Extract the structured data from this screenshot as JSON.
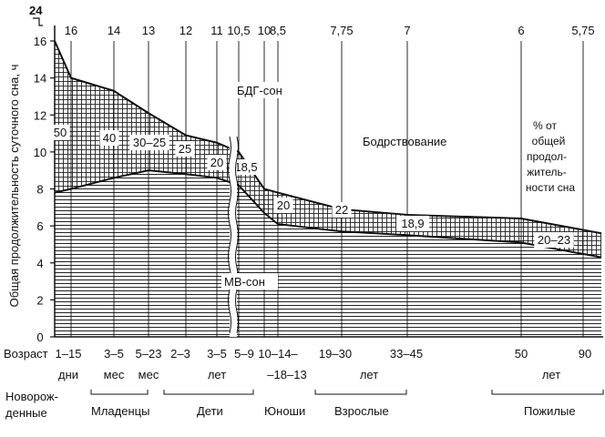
{
  "chart_data": {
    "type": "area",
    "title": "",
    "ylabel": "Общая продолжительность суточного сна, ч",
    "ylim": [
      0,
      16
    ],
    "yticks": [
      0,
      2,
      4,
      6,
      8,
      10,
      12,
      14,
      16
    ],
    "y_top_label": "24",
    "top_values": [
      "16",
      "14",
      "13",
      "12",
      "11",
      "10,5",
      "10",
      "8,5",
      "7,75",
      "7",
      "6",
      "5,75"
    ],
    "age_row_label": "Возраст",
    "age_groups": [
      {
        "range": "1–15",
        "unit": "дни"
      },
      {
        "range": "3–5",
        "unit": "мес"
      },
      {
        "range": "5–23",
        "unit": "мес"
      },
      {
        "range": "2–3",
        "unit": ""
      },
      {
        "range": "3–5",
        "unit": "лет"
      },
      {
        "range": "5–9",
        "unit": ""
      },
      {
        "range": "10–14–",
        "unit": "–18–13"
      },
      {
        "range": "19–30",
        "unit": "лет"
      },
      {
        "range": "33–45",
        "unit": ""
      },
      {
        "range": "50",
        "unit": "лет"
      },
      {
        "range": "90",
        "unit": ""
      }
    ],
    "categories": [
      "Новорожденные",
      "Младенцы",
      "Дети",
      "Юноши",
      "Взрослые",
      "Пожилые"
    ],
    "category_text": {
      "newborn_line1": "Новорож-",
      "newborn_line2": "денные",
      "infants": "Младенцы",
      "children": "Дети",
      "youth": "Юноши",
      "adults": "Взрослые",
      "elderly": "Пожилые"
    },
    "series": [
      {
        "name": "МВ-сон",
        "x": [
          0,
          0.5,
          1,
          2,
          3,
          4,
          5,
          6,
          7,
          8,
          9,
          10,
          11
        ],
        "values": [
          7.8,
          8.0,
          8.6,
          9.0,
          8.8,
          8.6,
          8.2,
          6.7,
          6.1,
          5.7,
          5.5,
          5.1,
          4.3
        ]
      },
      {
        "name": "БДГ-сон",
        "x": [
          0,
          0.5,
          1,
          2,
          3,
          4,
          5,
          6,
          7,
          8,
          9,
          10,
          11
        ],
        "values": [
          8.2,
          6.0,
          4.7,
          3.1,
          2.1,
          1.9,
          1.8,
          1.3,
          1.7,
          1.2,
          1.1,
          1.3,
          1.3
        ]
      }
    ],
    "totals": [
      16,
      14,
      13,
      12,
      11,
      10.5,
      10,
      8.5,
      7.75,
      7,
      6,
      5.75
    ],
    "rem_percent_labels": [
      "50",
      "40",
      "30–25",
      "25",
      "20",
      "18,5",
      "20",
      "22",
      "18,9",
      "20–23"
    ],
    "annotations": {
      "rem": "БДГ-сон",
      "nrem": "МВ-сон",
      "wake": "Бодрствование",
      "pct_line1": "% от",
      "pct_line2": "общей",
      "pct_line3": "продол-",
      "pct_line4": "житель-",
      "pct_line5": "ности сна"
    },
    "grid": false
  }
}
